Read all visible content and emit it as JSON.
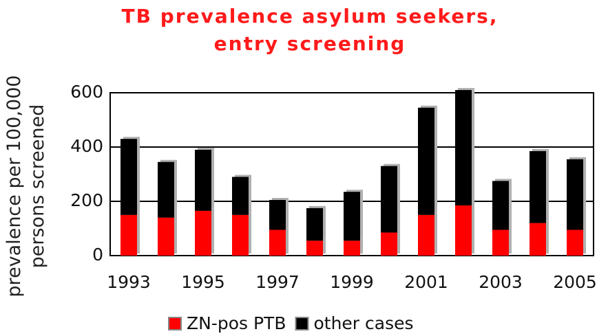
{
  "chart_data": {
    "type": "bar",
    "stacked": true,
    "title": "TB prevalence asylum seekers, entry screening",
    "y_label": "prevalence per 100,000 persons screened",
    "categories": [
      "1993",
      null,
      "1995",
      null,
      "1997",
      null,
      "1999",
      null,
      "2001",
      null,
      "2003",
      null,
      "2005"
    ],
    "series": [
      {
        "name": "ZN-pos PTB",
        "color": "#ff0000",
        "values": [
          150,
          140,
          165,
          150,
          95,
          55,
          55,
          85,
          150,
          185,
          95,
          120,
          95
        ]
      },
      {
        "name": "other cases",
        "color": "#000000",
        "values": [
          280,
          205,
          225,
          140,
          110,
          120,
          180,
          245,
          395,
          425,
          180,
          265,
          260
        ]
      }
    ],
    "ylim": [
      0,
      600
    ],
    "yticks": [
      0,
      200,
      400,
      600
    ],
    "grid": true
  }
}
